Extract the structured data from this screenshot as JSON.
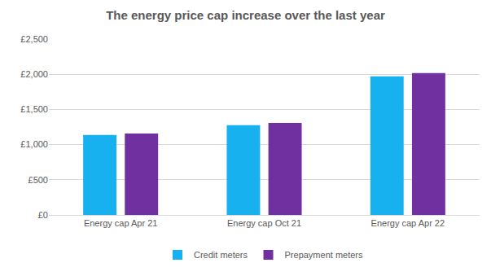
{
  "chart_data": {
    "type": "bar",
    "title": "The energy price cap increase over the last year",
    "categories": [
      "Energy cap Apr 21",
      "Energy cap Oct 21",
      "Energy cap Apr 22"
    ],
    "series": [
      {
        "name": "Credit meters",
        "color": "#16b1ee",
        "values": [
          1138,
          1277,
          1971
        ]
      },
      {
        "name": "Prepayment meters",
        "color": "#7030a0",
        "values": [
          1156,
          1309,
          2017
        ]
      }
    ],
    "ylim": [
      0,
      2500
    ],
    "yticks": [
      {
        "value": 0,
        "label": "£0"
      },
      {
        "value": 500,
        "label": "£500"
      },
      {
        "value": 1000,
        "label": "£1,000"
      },
      {
        "value": 1500,
        "label": "£1,500"
      },
      {
        "value": 2000,
        "label": "£2,000"
      },
      {
        "value": 2500,
        "label": "£2,500"
      }
    ],
    "grid": true,
    "legend": "bottom"
  }
}
